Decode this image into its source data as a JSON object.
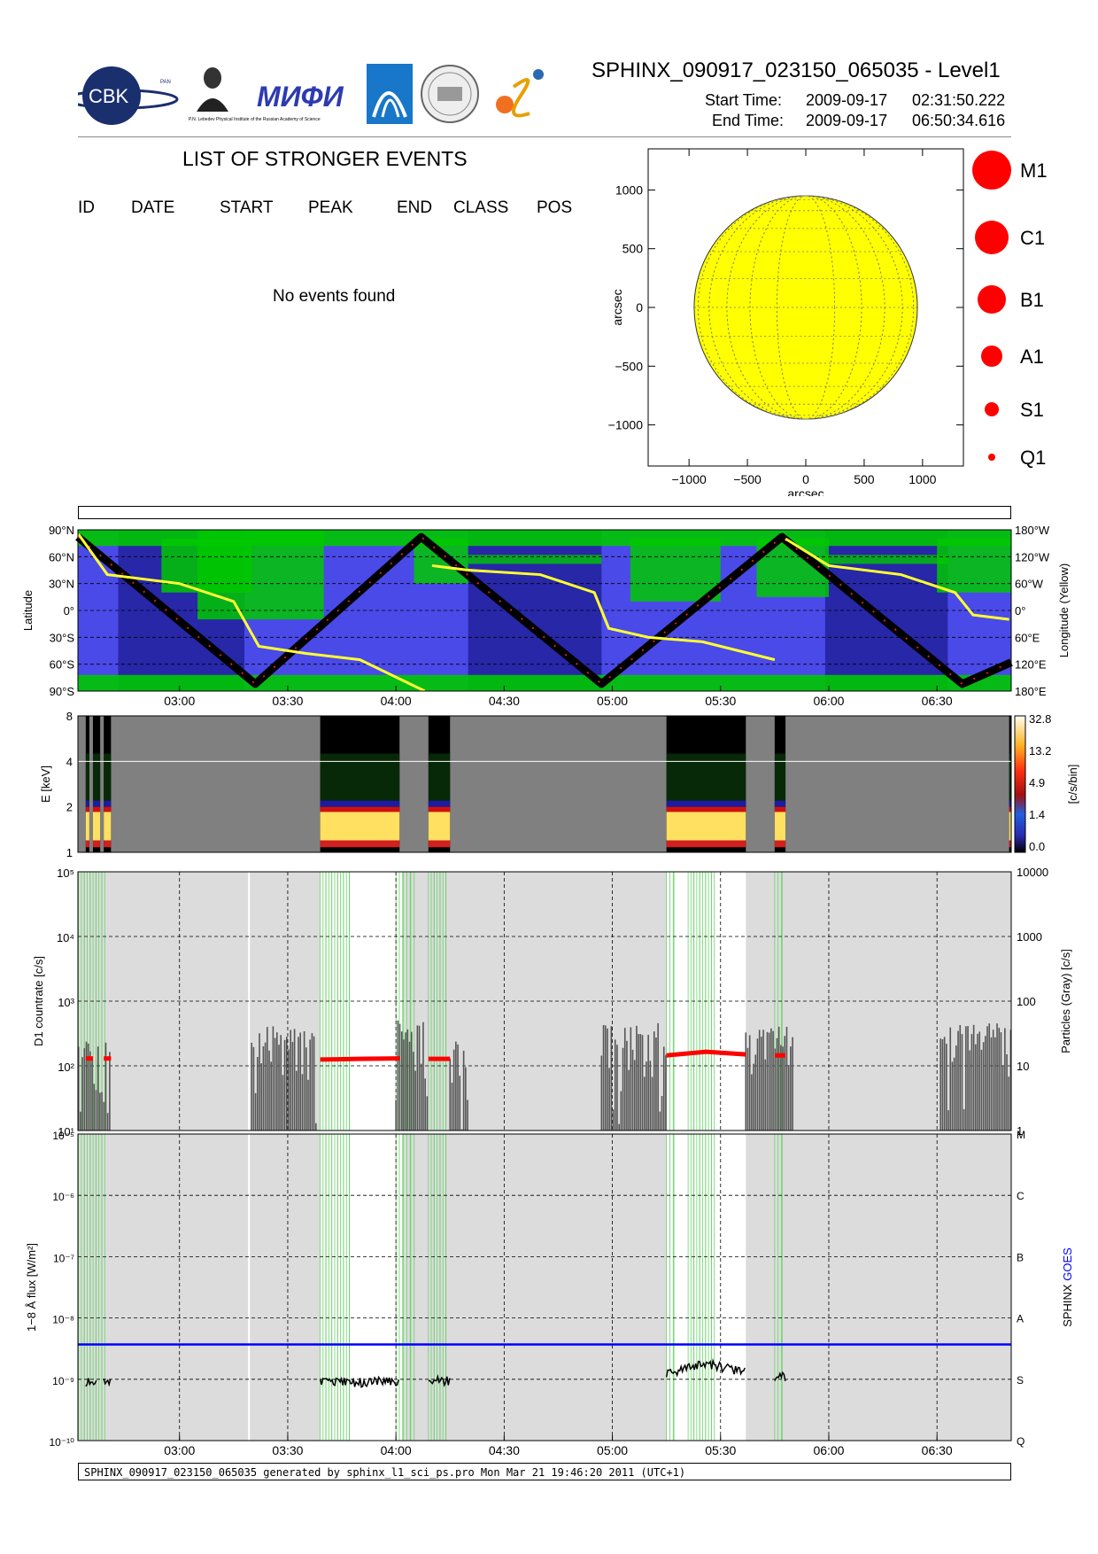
{
  "header": {
    "title": "SPHINX_090917_023150_065035 - Level1",
    "start_label": "Start Time:",
    "start_date": "2009-09-17",
    "start_time": "02:31:50.222",
    "end_label": "End Time:",
    "end_date": "2009-09-17",
    "end_time": "06:50:34.616"
  },
  "logos": {
    "cbk": "CBK",
    "cbk_sub": "PAN",
    "lebedev": "P.N. Lebedev Physical Institute of the Russian Academy of Science",
    "miphi": "МИФИ"
  },
  "events": {
    "title": "LIST OF STRONGER EVENTS",
    "columns": [
      "ID",
      "DATE",
      "START",
      "PEAK",
      "END",
      "CLASS",
      "POS"
    ],
    "empty_text": "No events found"
  },
  "footer": "SPHINX_090917_023150_065035 generated by sphinx_l1_sci_ps.pro Mon Mar 21 19:46:20 2011 (UTC+1)",
  "chart_data": [
    {
      "type": "scatter",
      "name": "sun-position-map",
      "xlabel": "arcsec",
      "ylabel": "arcsec",
      "xlim": [
        -1350,
        1350
      ],
      "ylim": [
        -1350,
        1350
      ],
      "xticks": [
        -1000,
        -500,
        0,
        500,
        1000
      ],
      "yticks": [
        -1000,
        -500,
        0,
        500,
        1000
      ],
      "xtick_labels": [
        "−1000",
        "−500",
        "0",
        "500",
        "1000"
      ],
      "ytick_labels": [
        "−1000",
        "−500",
        "0",
        "500",
        "1000"
      ],
      "solar_radius": 956,
      "disk_color": "#ffff00",
      "event_points": [],
      "size_legend": [
        "M1",
        "C1",
        "B1",
        "A1",
        "S1",
        "Q1"
      ],
      "legend_color": "#ff0000"
    },
    {
      "type": "line",
      "name": "orbit-latitude-longitude",
      "x_axis": "time",
      "xticks": [
        "03:00",
        "03:30",
        "04:00",
        "04:30",
        "05:00",
        "05:30",
        "06:00",
        "06:30"
      ],
      "xlim": [
        "02:31:50",
        "06:50:34"
      ],
      "ylabel": "Latitude",
      "ylabel_right": "Longitude (Yellow)",
      "ylim": [
        -90,
        90
      ],
      "left_tick_labels": [
        "90°N",
        "60°N",
        "30°N",
        "0°",
        "30°S",
        "60°S",
        "90°S"
      ],
      "right_tick_labels": [
        "180°W",
        "120°W",
        "60°W",
        "0°",
        "60°E",
        "120°E",
        "180°E"
      ],
      "latitude_track": {
        "times": [
          "02:31:50",
          "03:21:00",
          "04:07:00",
          "04:57:00",
          "05:47:00",
          "06:37:00",
          "06:50:34"
        ],
        "values": [
          82,
          -82,
          82,
          -82,
          82,
          -82,
          -58
        ],
        "color": "#000000"
      },
      "longitude_track_scaled": {
        "times": [
          "02:32",
          "02:40",
          "03:00",
          "03:15",
          "03:22",
          "03:35",
          "03:50",
          "04:08",
          "04:10",
          "04:20",
          "04:40",
          "04:55",
          "04:59",
          "05:10",
          "05:25",
          "05:45",
          "05:48",
          "06:00",
          "06:20",
          "06:35",
          "06:40",
          "06:50"
        ],
        "values": [
          85,
          40,
          30,
          10,
          -40,
          -48,
          -55,
          -90,
          50,
          45,
          40,
          20,
          -20,
          -30,
          -35,
          -55,
          80,
          50,
          40,
          20,
          -5,
          -10
        ],
        "color": "#ffff33"
      },
      "shading": {
        "sunlit_color": "#4a4ae8",
        "eclipse_color": "#2727a8",
        "particle_zone_color": "#00c800"
      },
      "eclipse_intervals": [
        [
          "02:43",
          "03:18"
        ],
        [
          "04:20",
          "04:57"
        ],
        [
          "05:59",
          "06:33"
        ]
      ]
    },
    {
      "type": "heatmap",
      "name": "energy-spectrogram",
      "ylabel": "E [keV]",
      "yticks": [
        1,
        2,
        4,
        8
      ],
      "ylog": true,
      "colorbar_label": "[c/s/bin]",
      "colorbar_ticks": [
        "32.8",
        "13.2",
        "4.9",
        "1.4",
        "0.0"
      ],
      "background": "#808080",
      "active_intervals": [
        [
          "02:34",
          "02:35"
        ],
        [
          "02:36",
          "02:38"
        ],
        [
          "02:39",
          "02:41"
        ],
        [
          "03:39",
          "04:01"
        ],
        [
          "04:09",
          "04:15"
        ],
        [
          "05:15",
          "05:37"
        ],
        [
          "05:45",
          "05:48"
        ],
        [
          "06:50",
          "06:50:34"
        ]
      ]
    },
    {
      "type": "line",
      "name": "d1-countrate",
      "ylabel": "D1 countrate [c/s]",
      "ylabel_right": "Particles (Gray) [c/s]",
      "ylog": true,
      "ylim": [
        10,
        100000
      ],
      "left_tick_labels": [
        "10¹",
        "10²",
        "10³",
        "10⁴",
        "10⁵"
      ],
      "right_tick_labels": [
        "1",
        "10",
        "100",
        "1000",
        "10000"
      ],
      "series": [
        {
          "name": "",
          "color": "#ff0000",
          "segments": [
            {
              "t": [
                "02:34",
                "02:36"
              ],
              "v": [
                130,
                130
              ]
            },
            {
              "t": [
                "02:39",
                "02:41"
              ],
              "v": [
                130,
                130
              ]
            },
            {
              "t": [
                "03:39",
                "03:50",
                "04:01"
              ],
              "v": [
                125,
                128,
                130
              ]
            },
            {
              "t": [
                "04:09",
                "04:15"
              ],
              "v": [
                128,
                128
              ]
            },
            {
              "t": [
                "05:15",
                "05:26",
                "05:37"
              ],
              "v": [
                145,
                165,
                150
              ]
            },
            {
              "t": [
                "05:45",
                "05:48"
              ],
              "v": [
                145,
                145
              ]
            }
          ]
        },
        {
          "name": "",
          "color": "#555555"
        }
      ]
    },
    {
      "type": "line",
      "name": "goes-flux",
      "ylabel": "1−8 Å flux [W/m²]",
      "ylabel_right": "SPHINX GOES",
      "ylog": true,
      "ylim": [
        1e-10,
        1e-05
      ],
      "left_tick_labels": [
        "10⁻¹⁰",
        "10⁻⁹",
        "10⁻⁸",
        "10⁻⁷",
        "10⁻⁶",
        "10⁻⁵"
      ],
      "class_labels": [
        "Q",
        "S",
        "A",
        "B",
        "C",
        "M"
      ],
      "series": [
        {
          "name": "SPHINX",
          "color": "#000000",
          "segments": [
            {
              "t": [
                "02:34",
                "02:37"
              ],
              "v": [
                9e-10,
                9e-10
              ]
            },
            {
              "t": [
                "02:39",
                "02:41"
              ],
              "v": [
                9e-10,
                9e-10
              ]
            },
            {
              "t": [
                "03:39",
                "03:50",
                "04:01"
              ],
              "v": [
                9.5e-10,
                9e-10,
                9.5e-10
              ]
            },
            {
              "t": [
                "04:09",
                "04:15"
              ],
              "v": [
                9.5e-10,
                9.5e-10
              ]
            },
            {
              "t": [
                "05:15",
                "05:26",
                "05:37"
              ],
              "v": [
                1.2e-09,
                1.8e-09,
                1.3e-09
              ]
            },
            {
              "t": [
                "05:45",
                "05:48"
              ],
              "v": [
                1.1e-09,
                1.1e-09
              ]
            }
          ]
        },
        {
          "name": "GOES",
          "color": "#0000ff",
          "constant": 3.7e-09
        }
      ]
    }
  ]
}
